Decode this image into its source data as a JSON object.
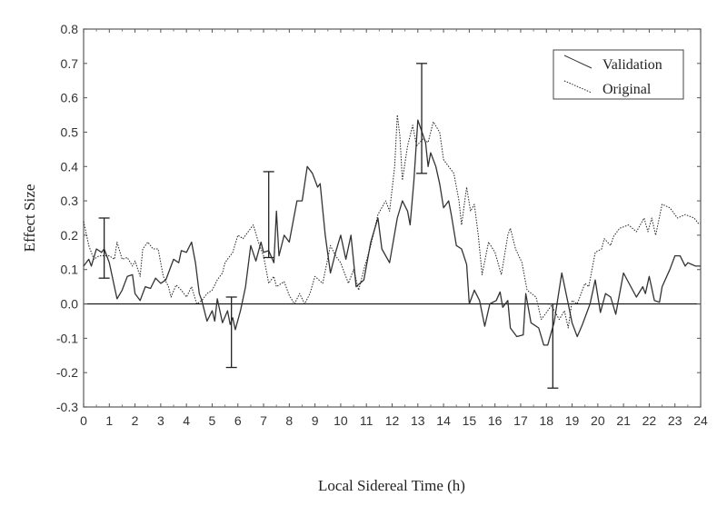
{
  "chart_data": {
    "type": "line",
    "title": "",
    "xlabel": "Local Sidereal Time (h)",
    "ylabel": "Effect Size",
    "xlim": [
      0,
      24
    ],
    "ylim": [
      -0.3,
      0.8
    ],
    "xticks": [
      0,
      1,
      2,
      3,
      4,
      5,
      6,
      7,
      8,
      9,
      10,
      11,
      12,
      13,
      14,
      15,
      16,
      17,
      18,
      19,
      20,
      21,
      22,
      23,
      24
    ],
    "yticks": [
      "-0.3",
      "-0.2",
      "-0.1",
      "0.0",
      "0.1",
      "0.2",
      "0.3",
      "0.4",
      "0.5",
      "0.6",
      "0.7",
      "0.8"
    ],
    "grid": false,
    "reference_line": 0.0,
    "legend": {
      "placement": "top-right",
      "entries": [
        "Validation",
        "Original"
      ]
    },
    "series": [
      {
        "name": "Validation",
        "style": "solid",
        "points": [
          [
            0,
            0.11
          ],
          [
            0.2,
            0.13
          ],
          [
            0.3,
            0.11
          ],
          [
            0.5,
            0.16
          ],
          [
            0.7,
            0.15
          ],
          [
            0.8,
            0.16
          ],
          [
            1.0,
            0.12
          ],
          [
            1.2,
            0.05
          ],
          [
            1.3,
            0.015
          ],
          [
            1.5,
            0.04
          ],
          [
            1.7,
            0.08
          ],
          [
            1.9,
            0.085
          ],
          [
            2.0,
            0.03
          ],
          [
            2.2,
            0.01
          ],
          [
            2.4,
            0.05
          ],
          [
            2.6,
            0.045
          ],
          [
            2.8,
            0.075
          ],
          [
            3.0,
            0.06
          ],
          [
            3.2,
            0.07
          ],
          [
            3.5,
            0.13
          ],
          [
            3.7,
            0.12
          ],
          [
            3.8,
            0.155
          ],
          [
            4.0,
            0.15
          ],
          [
            4.2,
            0.18
          ],
          [
            4.35,
            0.12
          ],
          [
            4.5,
            0.03
          ],
          [
            4.6,
            0.01
          ],
          [
            4.8,
            -0.05
          ],
          [
            5.0,
            -0.02
          ],
          [
            5.1,
            -0.05
          ],
          [
            5.2,
            0.015
          ],
          [
            5.4,
            -0.055
          ],
          [
            5.6,
            -0.02
          ],
          [
            5.7,
            -0.06
          ],
          [
            5.8,
            -0.04
          ],
          [
            5.9,
            -0.075
          ],
          [
            6.1,
            -0.02
          ],
          [
            6.3,
            0.05
          ],
          [
            6.5,
            0.17
          ],
          [
            6.7,
            0.125
          ],
          [
            6.9,
            0.18
          ],
          [
            7.0,
            0.15
          ],
          [
            7.2,
            0.155
          ],
          [
            7.4,
            0.12
          ],
          [
            7.5,
            0.27
          ],
          [
            7.6,
            0.14
          ],
          [
            7.8,
            0.2
          ],
          [
            8.0,
            0.18
          ],
          [
            8.3,
            0.3
          ],
          [
            8.5,
            0.3
          ],
          [
            8.7,
            0.4
          ],
          [
            8.9,
            0.38
          ],
          [
            9.1,
            0.34
          ],
          [
            9.2,
            0.35
          ],
          [
            9.4,
            0.2
          ],
          [
            9.6,
            0.09
          ],
          [
            9.8,
            0.15
          ],
          [
            10.0,
            0.2
          ],
          [
            10.2,
            0.13
          ],
          [
            10.4,
            0.2
          ],
          [
            10.6,
            0.05
          ],
          [
            10.9,
            0.07
          ],
          [
            11.17,
            0.18
          ],
          [
            11.45,
            0.25
          ],
          [
            11.6,
            0.16
          ],
          [
            11.9,
            0.12
          ],
          [
            12.2,
            0.25
          ],
          [
            12.4,
            0.3
          ],
          [
            12.6,
            0.27
          ],
          [
            12.7,
            0.23
          ],
          [
            12.85,
            0.36
          ],
          [
            13.0,
            0.535
          ],
          [
            13.3,
            0.47
          ],
          [
            13.4,
            0.4
          ],
          [
            13.5,
            0.44
          ],
          [
            13.7,
            0.4
          ],
          [
            13.85,
            0.35
          ],
          [
            14.0,
            0.28
          ],
          [
            14.2,
            0.3
          ],
          [
            14.3,
            0.26
          ],
          [
            14.5,
            0.17
          ],
          [
            14.7,
            0.16
          ],
          [
            14.9,
            0.115
          ],
          [
            15.0,
            0.0
          ],
          [
            15.2,
            0.04
          ],
          [
            15.4,
            0.01
          ],
          [
            15.6,
            -0.065
          ],
          [
            15.8,
            0.0
          ],
          [
            16.05,
            0.01
          ],
          [
            16.2,
            0.035
          ],
          [
            16.3,
            -0.01
          ],
          [
            16.5,
            0.01
          ],
          [
            16.6,
            -0.07
          ],
          [
            16.85,
            -0.095
          ],
          [
            17.1,
            -0.09
          ],
          [
            17.2,
            0.03
          ],
          [
            17.4,
            -0.055
          ],
          [
            17.7,
            -0.07
          ],
          [
            17.9,
            -0.12
          ],
          [
            18.05,
            -0.12
          ],
          [
            18.2,
            -0.08
          ],
          [
            18.3,
            -0.055
          ],
          [
            18.6,
            0.09
          ],
          [
            18.85,
            0.0
          ],
          [
            19.0,
            -0.055
          ],
          [
            19.2,
            -0.095
          ],
          [
            19.4,
            -0.06
          ],
          [
            19.7,
            0.0
          ],
          [
            19.9,
            0.07
          ],
          [
            20.1,
            -0.025
          ],
          [
            20.3,
            0.03
          ],
          [
            20.5,
            0.02
          ],
          [
            20.7,
            -0.03
          ],
          [
            21.0,
            0.09
          ],
          [
            21.5,
            0.02
          ],
          [
            21.75,
            0.05
          ],
          [
            21.85,
            0.03
          ],
          [
            22.0,
            0.08
          ],
          [
            22.2,
            0.01
          ],
          [
            22.4,
            0.005
          ],
          [
            22.5,
            0.05
          ],
          [
            22.8,
            0.1
          ],
          [
            23.0,
            0.14
          ],
          [
            23.2,
            0.14
          ],
          [
            23.4,
            0.11
          ],
          [
            23.5,
            0.12
          ],
          [
            23.8,
            0.11
          ],
          [
            24,
            0.11
          ]
        ]
      },
      {
        "name": "Original",
        "style": "dotted",
        "points": [
          [
            0,
            0.24
          ],
          [
            0.2,
            0.17
          ],
          [
            0.4,
            0.13
          ],
          [
            0.6,
            0.14
          ],
          [
            0.8,
            0.14
          ],
          [
            1.0,
            0.14
          ],
          [
            1.2,
            0.13
          ],
          [
            1.3,
            0.18
          ],
          [
            1.5,
            0.13
          ],
          [
            1.7,
            0.135
          ],
          [
            1.9,
            0.11
          ],
          [
            2.0,
            0.125
          ],
          [
            2.2,
            0.08
          ],
          [
            2.3,
            0.16
          ],
          [
            2.5,
            0.18
          ],
          [
            2.7,
            0.16
          ],
          [
            2.9,
            0.16
          ],
          [
            3.1,
            0.08
          ],
          [
            3.3,
            0.05
          ],
          [
            3.4,
            0.02
          ],
          [
            3.6,
            0.055
          ],
          [
            3.8,
            0.04
          ],
          [
            4.0,
            0.02
          ],
          [
            4.2,
            0.05
          ],
          [
            4.4,
            0.0
          ],
          [
            4.6,
            0.01
          ],
          [
            4.8,
            0.03
          ],
          [
            5.0,
            0.04
          ],
          [
            5.2,
            0.07
          ],
          [
            5.4,
            0.09
          ],
          [
            5.5,
            0.12
          ],
          [
            5.8,
            0.15
          ],
          [
            6.0,
            0.2
          ],
          [
            6.2,
            0.19
          ],
          [
            6.4,
            0.21
          ],
          [
            6.6,
            0.23
          ],
          [
            6.8,
            0.18
          ],
          [
            7.0,
            0.14
          ],
          [
            7.2,
            0.06
          ],
          [
            7.4,
            0.08
          ],
          [
            7.5,
            0.05
          ],
          [
            7.8,
            0.065
          ],
          [
            8.0,
            0.025
          ],
          [
            8.2,
            0.0
          ],
          [
            8.4,
            0.03
          ],
          [
            8.6,
            0.0
          ],
          [
            8.8,
            0.03
          ],
          [
            9.0,
            0.08
          ],
          [
            9.3,
            0.06
          ],
          [
            9.6,
            0.17
          ],
          [
            9.8,
            0.14
          ],
          [
            10.0,
            0.12
          ],
          [
            10.3,
            0.06
          ],
          [
            10.5,
            0.1
          ],
          [
            10.7,
            0.04
          ],
          [
            10.9,
            0.1
          ],
          [
            11.17,
            0.17
          ],
          [
            11.45,
            0.26
          ],
          [
            11.75,
            0.3
          ],
          [
            11.9,
            0.27
          ],
          [
            12.1,
            0.4
          ],
          [
            12.2,
            0.55
          ],
          [
            12.3,
            0.49
          ],
          [
            12.4,
            0.36
          ],
          [
            12.6,
            0.46
          ],
          [
            12.8,
            0.52
          ],
          [
            12.95,
            0.46
          ],
          [
            13.2,
            0.48
          ],
          [
            13.4,
            0.47
          ],
          [
            13.6,
            0.53
          ],
          [
            13.85,
            0.5
          ],
          [
            14.0,
            0.42
          ],
          [
            14.2,
            0.4
          ],
          [
            14.4,
            0.38
          ],
          [
            14.6,
            0.3
          ],
          [
            14.7,
            0.23
          ],
          [
            14.9,
            0.34
          ],
          [
            15.05,
            0.27
          ],
          [
            15.2,
            0.29
          ],
          [
            15.35,
            0.2
          ],
          [
            15.5,
            0.085
          ],
          [
            15.75,
            0.18
          ],
          [
            16.0,
            0.15
          ],
          [
            16.25,
            0.085
          ],
          [
            16.5,
            0.2
          ],
          [
            16.6,
            0.22
          ],
          [
            16.8,
            0.16
          ],
          [
            17.05,
            0.12
          ],
          [
            17.25,
            0.04
          ],
          [
            17.6,
            0.02
          ],
          [
            17.8,
            -0.045
          ],
          [
            18.2,
            -0.005
          ],
          [
            18.5,
            -0.045
          ],
          [
            18.7,
            -0.02
          ],
          [
            18.85,
            -0.07
          ],
          [
            19.0,
            0.01
          ],
          [
            19.2,
            0.0
          ],
          [
            19.5,
            0.06
          ],
          [
            19.65,
            0.05
          ],
          [
            19.9,
            0.15
          ],
          [
            20.15,
            0.16
          ],
          [
            20.25,
            0.19
          ],
          [
            20.5,
            0.17
          ],
          [
            20.6,
            0.195
          ],
          [
            20.85,
            0.22
          ],
          [
            21.2,
            0.23
          ],
          [
            21.5,
            0.21
          ],
          [
            21.8,
            0.25
          ],
          [
            21.95,
            0.21
          ],
          [
            22.1,
            0.25
          ],
          [
            22.25,
            0.2
          ],
          [
            22.5,
            0.29
          ],
          [
            22.8,
            0.28
          ],
          [
            23.1,
            0.25
          ],
          [
            23.4,
            0.26
          ],
          [
            23.75,
            0.25
          ],
          [
            23.9,
            0.235
          ],
          [
            24,
            0.235
          ]
        ]
      }
    ],
    "error_bars": [
      {
        "x": 0.8,
        "low": 0.075,
        "high": 0.25
      },
      {
        "x": 5.75,
        "low": -0.185,
        "high": 0.02
      },
      {
        "x": 7.2,
        "low": 0.135,
        "high": 0.385
      },
      {
        "x": 13.15,
        "low": 0.38,
        "high": 0.7
      },
      {
        "x": 18.25,
        "low": -0.245,
        "high": 0.0
      }
    ]
  },
  "colors": {
    "validation": "#333333",
    "original": "#222222",
    "axis": "#555555"
  }
}
